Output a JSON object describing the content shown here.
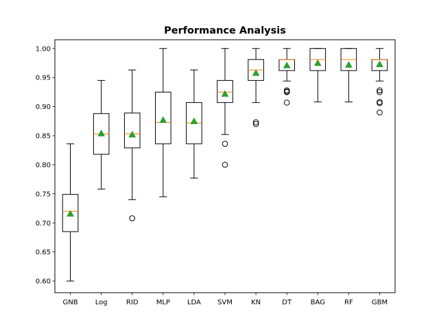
{
  "chart_data": {
    "type": "box",
    "title": "Performance Analysis",
    "xlabel": "",
    "ylabel": "",
    "ylim": [
      0.58,
      1.015
    ],
    "yticks": [
      0.6,
      0.65,
      0.7,
      0.75,
      0.8,
      0.85,
      0.9,
      0.95,
      1.0
    ],
    "ytick_labels": [
      "0.60",
      "0.65",
      "0.70",
      "0.75",
      "0.80",
      "0.85",
      "0.90",
      "0.95",
      "1.00"
    ],
    "grid": false,
    "colors": {
      "median": "#ff7f0e",
      "mean": "#2ca02c",
      "box": "#000000"
    },
    "categories": [
      "GNB",
      "Log",
      "RID",
      "MLP",
      "LDA",
      "SVM",
      "KN",
      "DT",
      "BAG",
      "RF",
      "GBM"
    ],
    "series": [
      {
        "name": "GNB",
        "whisker_low": 0.6,
        "q1": 0.685,
        "median": 0.72,
        "q3": 0.749,
        "whisker_high": 0.836,
        "mean": 0.716,
        "outliers": []
      },
      {
        "name": "Log",
        "whisker_low": 0.758,
        "q1": 0.818,
        "median": 0.853,
        "q3": 0.888,
        "whisker_high": 0.945,
        "mean": 0.854,
        "outliers": []
      },
      {
        "name": "RID",
        "whisker_low": 0.74,
        "q1": 0.829,
        "median": 0.853,
        "q3": 0.889,
        "whisker_high": 0.963,
        "mean": 0.852,
        "outliers": [
          0.708
        ]
      },
      {
        "name": "MLP",
        "whisker_low": 0.745,
        "q1": 0.836,
        "median": 0.873,
        "q3": 0.925,
        "whisker_high": 1.0,
        "mean": 0.877,
        "outliers": []
      },
      {
        "name": "LDA",
        "whisker_low": 0.777,
        "q1": 0.836,
        "median": 0.872,
        "q3": 0.907,
        "whisker_high": 0.963,
        "mean": 0.875,
        "outliers": []
      },
      {
        "name": "SVM",
        "whisker_low": 0.852,
        "q1": 0.907,
        "median": 0.925,
        "q3": 0.945,
        "whisker_high": 1.0,
        "mean": 0.922,
        "outliers": [
          0.836,
          0.8
        ]
      },
      {
        "name": "KN",
        "whisker_low": 0.907,
        "q1": 0.945,
        "median": 0.963,
        "q3": 0.981,
        "whisker_high": 1.0,
        "mean": 0.958,
        "outliers": [
          0.873,
          0.87
        ]
      },
      {
        "name": "DT",
        "whisker_low": 0.944,
        "q1": 0.962,
        "median": 0.981,
        "q3": 0.981,
        "whisker_high": 1.0,
        "mean": 0.971,
        "outliers": [
          0.928,
          0.926,
          0.925,
          0.907
        ]
      },
      {
        "name": "BAG",
        "whisker_low": 0.908,
        "q1": 0.962,
        "median": 0.981,
        "q3": 1.0,
        "whisker_high": 1.0,
        "mean": 0.975,
        "outliers": []
      },
      {
        "name": "RF",
        "whisker_low": 0.908,
        "q1": 0.962,
        "median": 0.981,
        "q3": 1.0,
        "whisker_high": 1.0,
        "mean": 0.972,
        "outliers": []
      },
      {
        "name": "GBM",
        "whisker_low": 0.944,
        "q1": 0.962,
        "median": 0.981,
        "q3": 0.981,
        "whisker_high": 1.0,
        "mean": 0.973,
        "outliers": [
          0.928,
          0.925,
          0.908,
          0.906,
          0.89
        ]
      }
    ]
  }
}
